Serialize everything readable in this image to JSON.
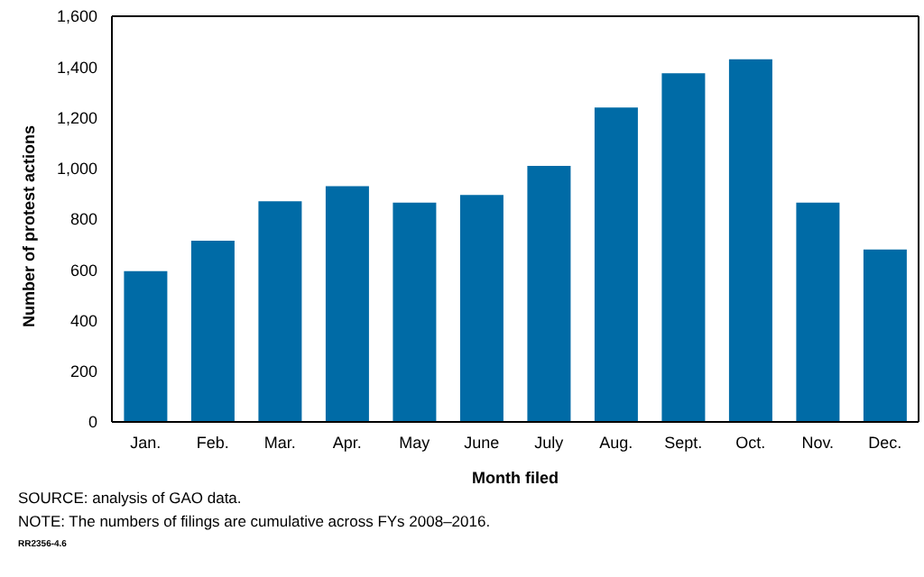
{
  "chart_data": {
    "type": "bar",
    "xlabel": "Month filed",
    "ylabel": "Number of protest actions",
    "categories": [
      "Jan.",
      "Feb.",
      "Mar.",
      "Apr.",
      "May",
      "June",
      "July",
      "Aug.",
      "Sept.",
      "Oct.",
      "Nov.",
      "Dec."
    ],
    "values": [
      595,
      715,
      870,
      930,
      865,
      895,
      1010,
      1240,
      1375,
      1430,
      865,
      680
    ],
    "color": "#006ba6",
    "ylim": [
      0,
      1600
    ],
    "yticks": [
      0,
      {
        "value": 200,
        "label": "200"
      },
      {
        "value": 400,
        "label": "400"
      },
      {
        "value": 600,
        "label": "600"
      },
      {
        "value": 800,
        "label": "800"
      },
      {
        "value": 1000,
        "label": "1,000"
      },
      {
        "value": 1200,
        "label": "1,200"
      },
      {
        "value": 1400,
        "label": "1,400"
      },
      {
        "value": 1600,
        "label": "1,600"
      }
    ],
    "grid": false,
    "annotations": [
      "SOURCE: analysis of GAO data.",
      "NOTE: The numbers of filings are cumulative across FYs 2008–2016.",
      "RR2356-4.6"
    ]
  }
}
